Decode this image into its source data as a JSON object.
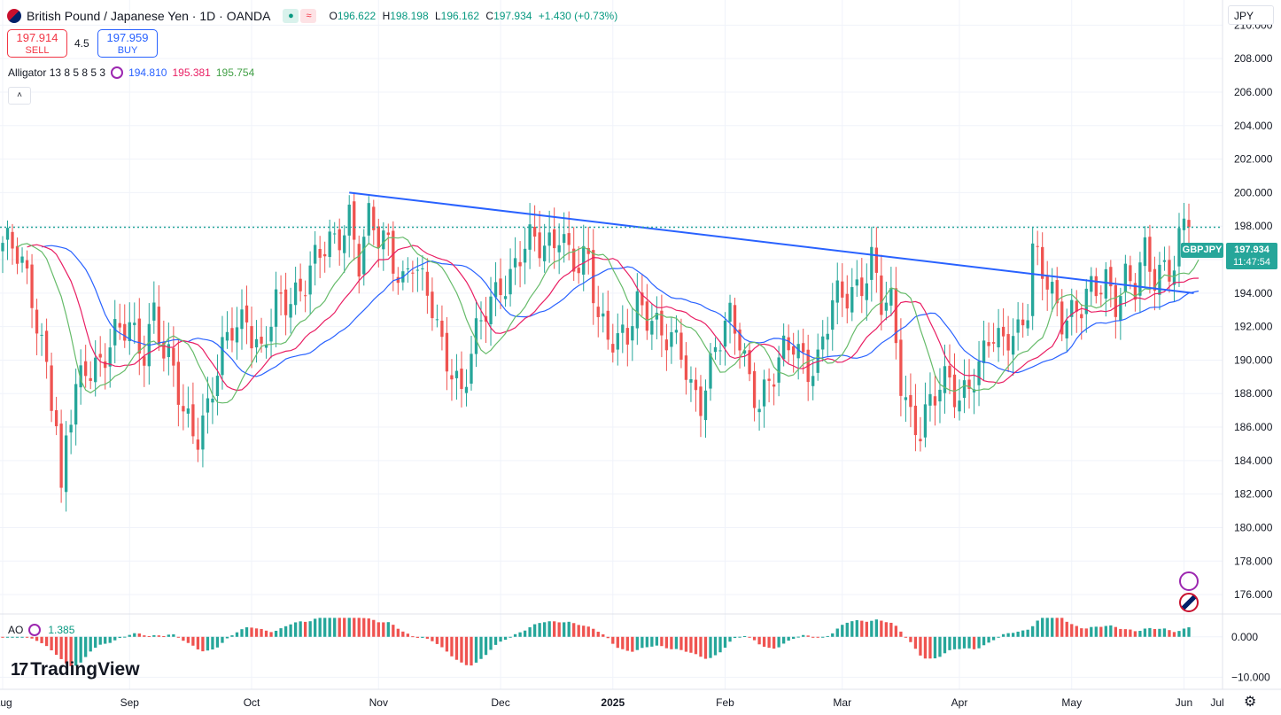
{
  "header": {
    "title": "British Pound / Japanese Yen · 1D · OANDA",
    "ohlc": {
      "o_label": "O",
      "o": "196.622",
      "h_label": "H",
      "h": "198.198",
      "l_label": "L",
      "l": "196.162",
      "c_label": "C",
      "c": "197.934",
      "change": "+1.430 (+0.73%)"
    },
    "tag_green": "●",
    "tag_red": "≈"
  },
  "trade": {
    "sell_price": "197.914",
    "sell_label": "SELL",
    "spread": "4.5",
    "buy_price": "197.959",
    "buy_label": "BUY"
  },
  "indicator": {
    "name": "Alligator 13 8 5 8 5 3",
    "jaw": "194.810",
    "teeth": "195.381",
    "lips": "195.754"
  },
  "ao": {
    "name": "AO",
    "value": "1.385"
  },
  "currency": "JPY",
  "last_price": {
    "symbol": "GBPJPY",
    "price": "197.934",
    "countdown": "11:47:54"
  },
  "collapse_icon": "˄",
  "settings_icon": "⚙",
  "logo_mark": "17",
  "logo": "TradingView",
  "colors": {
    "up": "#26a69a",
    "down": "#ef5350",
    "jaw": "#2962ff",
    "teeth": "#e91e63",
    "lips": "#66bb6a",
    "trend": "#2962ff",
    "price_line": "#26a69a",
    "grid": "#f0f3fa"
  },
  "chart_data": {
    "type": "candlestick",
    "title": "British Pound / Japanese Yen · 1D · OANDA",
    "ylim": [
      175.0,
      211.5
    ],
    "y_ticks": [
      176,
      178,
      180,
      182,
      184,
      186,
      188,
      190,
      192,
      194,
      196,
      198,
      200,
      202,
      204,
      206,
      208,
      210
    ],
    "x_ticks": [
      "Aug",
      "Sep",
      "Oct",
      "Nov",
      "Dec",
      "2025",
      "Feb",
      "Mar",
      "Apr",
      "May",
      "Jun",
      "Jul"
    ],
    "ao_y_ticks": [
      {
        "v": 0,
        "label": "0.000"
      },
      {
        "v": -10,
        "label": "−10.000"
      }
    ],
    "ao_ylim": [
      -13,
      5
    ],
    "last_close": 197.934,
    "path_keypoints": [
      [
        0,
        197
      ],
      [
        3,
        196
      ],
      [
        6,
        194
      ],
      [
        9,
        190
      ],
      [
        11,
        186
      ],
      [
        12,
        181
      ],
      [
        13,
        185
      ],
      [
        15,
        188
      ],
      [
        17,
        190
      ],
      [
        20,
        190
      ],
      [
        23,
        191
      ],
      [
        26,
        192
      ],
      [
        29,
        191
      ],
      [
        31,
        193
      ],
      [
        33,
        190
      ],
      [
        35,
        189
      ],
      [
        37,
        187
      ],
      [
        40,
        186
      ],
      [
        42,
        187
      ],
      [
        44,
        189
      ],
      [
        47,
        192
      ],
      [
        50,
        193
      ],
      [
        53,
        190
      ],
      [
        56,
        193
      ],
      [
        59,
        194
      ],
      [
        62,
        195
      ],
      [
        65,
        196
      ],
      [
        68,
        197
      ],
      [
        71,
        199
      ],
      [
        73,
        196
      ],
      [
        75,
        198
      ],
      [
        77,
        197
      ],
      [
        79,
        197
      ],
      [
        82,
        195
      ],
      [
        84,
        196
      ],
      [
        86,
        194
      ],
      [
        88,
        193
      ],
      [
        90,
        191
      ],
      [
        92,
        190
      ],
      [
        94,
        188
      ],
      [
        96,
        190
      ],
      [
        99,
        193
      ],
      [
        102,
        195
      ],
      [
        104,
        195
      ],
      [
        106,
        196
      ],
      [
        109,
        197
      ],
      [
        111,
        197
      ],
      [
        114,
        198
      ],
      [
        116,
        196
      ],
      [
        118,
        195
      ],
      [
        120,
        196
      ],
      [
        122,
        193
      ],
      [
        124,
        192
      ],
      [
        126,
        191
      ],
      [
        128,
        191
      ],
      [
        130,
        193
      ],
      [
        133,
        193
      ],
      [
        135,
        192
      ],
      [
        137,
        191
      ],
      [
        139,
        190
      ],
      [
        141,
        188
      ],
      [
        143,
        188
      ],
      [
        146,
        191
      ],
      [
        149,
        192
      ],
      [
        151,
        191
      ],
      [
        153,
        189
      ],
      [
        155,
        188
      ],
      [
        158,
        189
      ],
      [
        160,
        190
      ],
      [
        162,
        191
      ],
      [
        165,
        190
      ],
      [
        167,
        190
      ],
      [
        170,
        193
      ],
      [
        173,
        194
      ],
      [
        176,
        195
      ],
      [
        178,
        196
      ],
      [
        180,
        193
      ],
      [
        182,
        193
      ],
      [
        184,
        189
      ],
      [
        186,
        187
      ],
      [
        188,
        186
      ],
      [
        190,
        187
      ],
      [
        192,
        188
      ],
      [
        194,
        189
      ],
      [
        196,
        188
      ],
      [
        198,
        189
      ],
      [
        200,
        189
      ],
      [
        202,
        191
      ],
      [
        204,
        191
      ],
      [
        206,
        192
      ],
      [
        208,
        192
      ],
      [
        210,
        193
      ],
      [
        211,
        196
      ],
      [
        213,
        195
      ],
      [
        215,
        194
      ],
      [
        217,
        193
      ],
      [
        219,
        193
      ],
      [
        221,
        193
      ],
      [
        224,
        194
      ],
      [
        226,
        195
      ],
      [
        228,
        194
      ],
      [
        230,
        195
      ],
      [
        232,
        194
      ],
      [
        234,
        196
      ],
      [
        236,
        195
      ],
      [
        238,
        196
      ],
      [
        240,
        196
      ],
      [
        242,
        197.934
      ]
    ],
    "trendline": [
      [
        71,
        200.0
      ],
      [
        244,
        194.0
      ]
    ]
  }
}
